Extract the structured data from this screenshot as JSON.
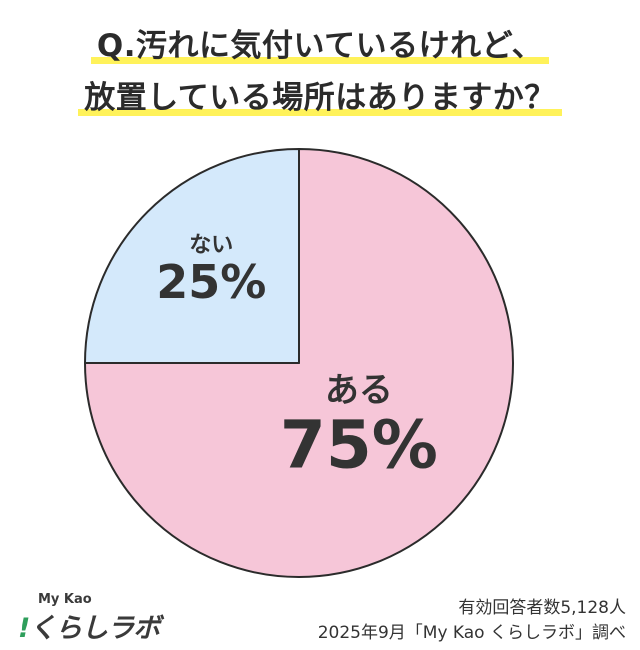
{
  "question": {
    "line1": "Q.汚れに気付いているけれど、",
    "line2": "放置している場所はありますか？"
  },
  "chart_data": {
    "type": "pie",
    "slices": [
      {
        "label": "ある",
        "value": 75,
        "display": "75%",
        "color": "#f6c6d8"
      },
      {
        "label": "ない",
        "value": 25,
        "display": "25%",
        "color": "#d4e9fb"
      }
    ],
    "start_angle_deg": 0,
    "direction": "clockwise"
  },
  "footer": {
    "respondents": "有効回答者数5,128人",
    "survey": "2025年9月「My Kao くらしラボ」調べ",
    "brand_top": "My Kao",
    "brand_bang": "!",
    "brand_main": "くらしラボ"
  }
}
